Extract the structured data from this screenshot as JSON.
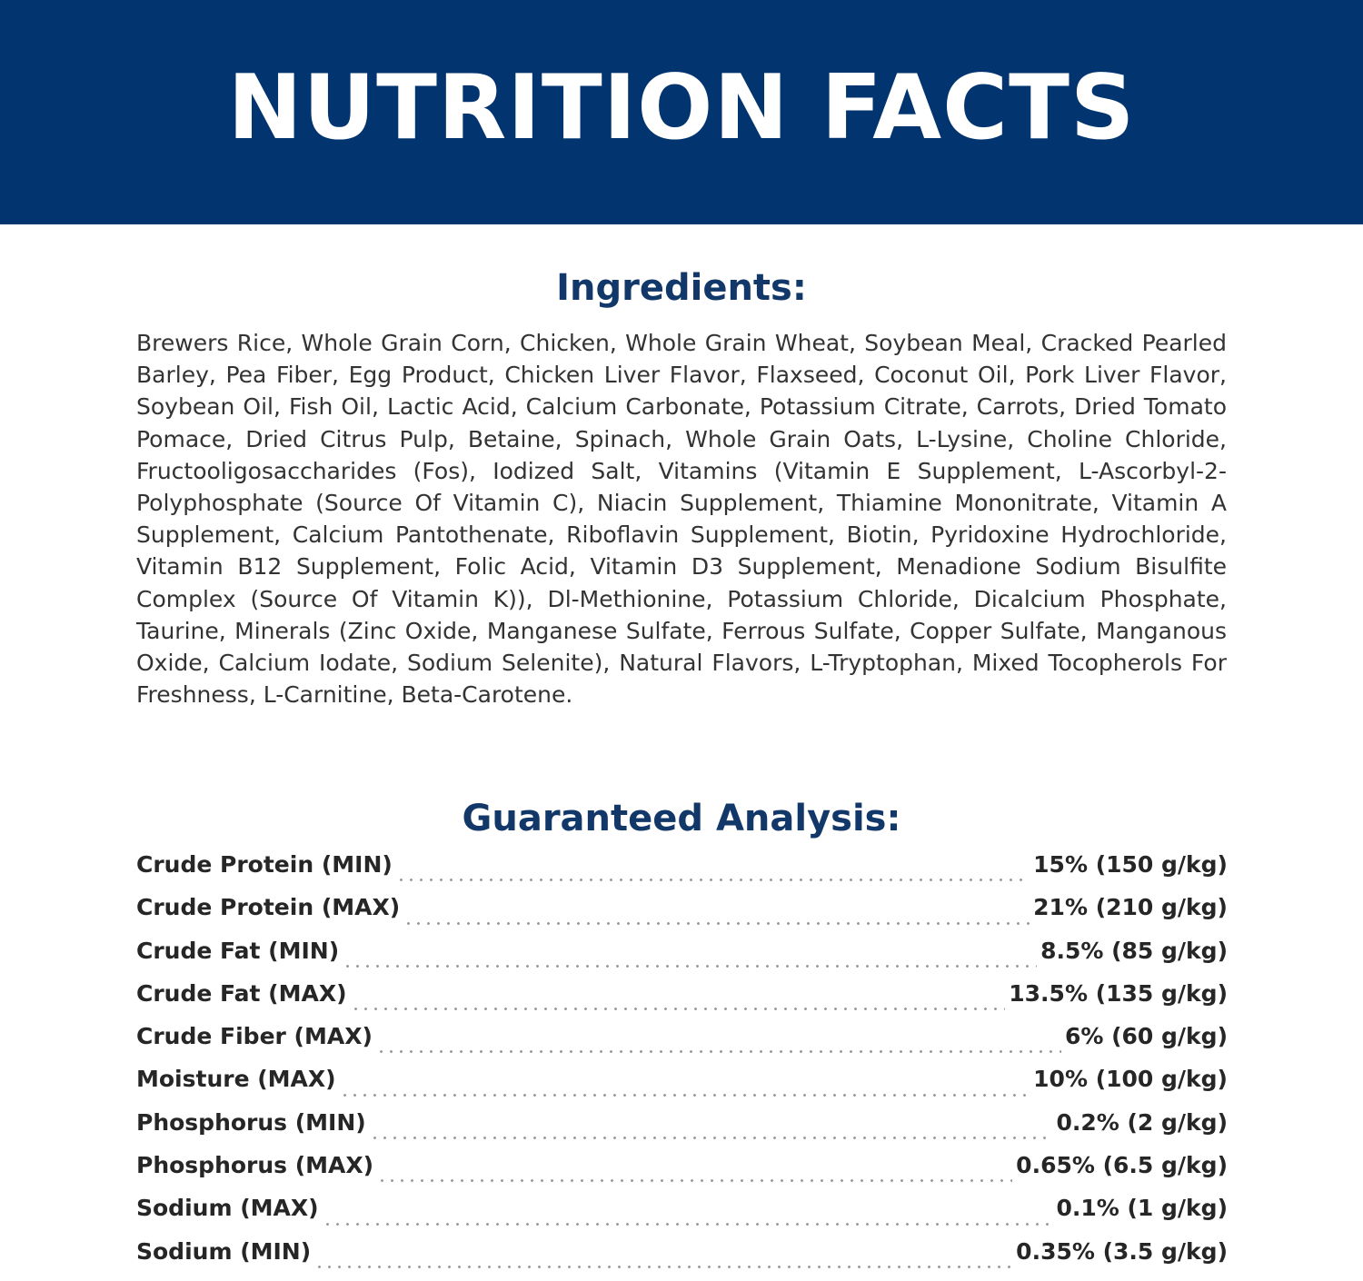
{
  "banner": {
    "title": "NUTRITION FACTS",
    "background": "#023570"
  },
  "ingredients": {
    "heading": "Ingredients:",
    "text": "Brewers Rice, Whole Grain Corn, Chicken, Whole Grain Wheat, Soybean Meal, Cracked Pearled Barley, Pea Fiber, Egg Product, Chicken Liver Flavor, Flaxseed, Coconut Oil, Pork Liver Flavor, Soybean Oil, Fish Oil, Lactic Acid, Calcium Carbonate, Potassium Citrate, Carrots, Dried Tomato Pomace, Dried Citrus Pulp, Betaine, Spinach, Whole Grain Oats, L-Lysine, Choline Chloride, Fructooligosaccharides (Fos), Iodized Salt, Vitamins (Vitamin E Supplement, L-Ascorbyl-2-Polyphosphate (Source Of Vitamin C), Niacin Supplement, Thiamine Mononitrate, Vitamin A Supplement, Calcium Pantothenate, Riboflavin Supplement, Biotin, Pyridoxine Hydrochloride, Vitamin B12 Supplement, Folic Acid, Vitamin D3 Supplement, Menadione Sodium Bisulfite Complex (Source Of Vitamin K)), Dl-Methionine, Potassium Chloride, Dicalcium Phosphate, Taurine, Minerals (Zinc Oxide, Manganese Sulfate, Ferrous Sulfate, Copper Sulfate, Manganous Oxide, Calcium Iodate, Sodium Selenite), Natural Flavors, L-Tryptophan, Mixed Tocopherols For Freshness, L-Carnitine, Beta-Carotene."
  },
  "analysis": {
    "heading": "Guaranteed Analysis:",
    "rows": [
      {
        "label": "Crude Protein (MIN)",
        "value": "15% (150 g/kg)"
      },
      {
        "label": "Crude Protein (MAX)",
        "value": "21% (210 g/kg)"
      },
      {
        "label": "Crude Fat (MIN)",
        "value": "8.5% (85 g/kg)"
      },
      {
        "label": "Crude Fat (MAX)",
        "value": "13.5% (135 g/kg)"
      },
      {
        "label": "Crude Fiber (MAX)",
        "value": "6% (60 g/kg)"
      },
      {
        "label": "Moisture (MAX)",
        "value": "10% (100 g/kg)"
      },
      {
        "label": "Phosphorus (MIN)",
        "value": "0.2% (2 g/kg)"
      },
      {
        "label": "Phosphorus (MAX)",
        "value": "0.65% (6.5 g/kg)"
      },
      {
        "label": "Sodium (MAX)",
        "value": "0.1% (1 g/kg)"
      },
      {
        "label": "Sodium (MIN)",
        "value": "0.35% (3.5 g/kg)"
      }
    ]
  },
  "colors": {
    "heading": "#12386a",
    "body_text": "#333333",
    "dot_leader": "#9a9a9a"
  }
}
